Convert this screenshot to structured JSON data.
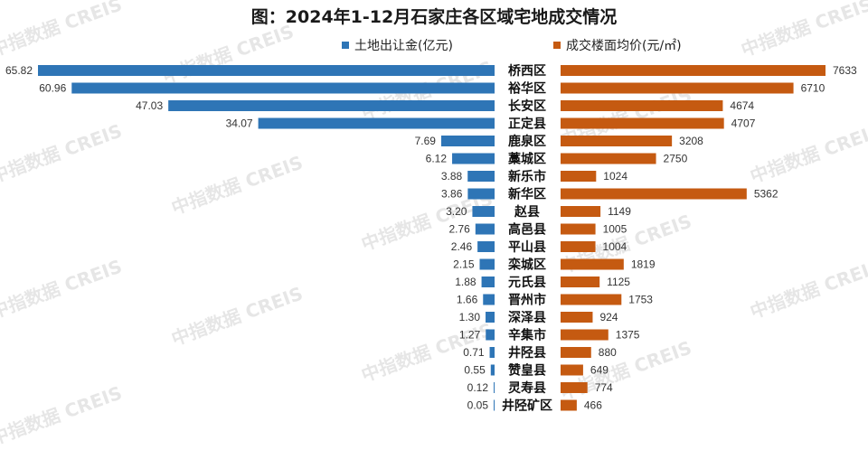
{
  "chart_data": {
    "type": "bar",
    "title": "图：2024年1-12月石家庄各区域宅地成交情况",
    "categories": [
      "桥西区",
      "裕华区",
      "长安区",
      "正定县",
      "鹿泉区",
      "藁城区",
      "新乐市",
      "新华区",
      "赵县",
      "高邑县",
      "平山县",
      "栾城区",
      "元氏县",
      "晋州市",
      "深泽县",
      "辛集市",
      "井陉县",
      "赞皇县",
      "灵寿县",
      "井陉矿区"
    ],
    "series": [
      {
        "name": "土地出让金(亿元)",
        "color": "#2e75b6",
        "values": [
          65.82,
          60.96,
          47.03,
          34.07,
          7.69,
          6.12,
          3.88,
          3.86,
          3.2,
          2.76,
          2.46,
          2.15,
          1.88,
          1.66,
          1.3,
          1.27,
          0.71,
          0.55,
          0.12,
          0.05
        ],
        "labels": [
          "65.82",
          "60.96",
          "47.03",
          "34.07",
          "7.69",
          "6.12",
          "3.88",
          "3.86",
          "3.20",
          "2.76",
          "2.46",
          "2.15",
          "1.88",
          "1.66",
          "1.30",
          "1.27",
          "0.71",
          "0.55",
          "0.12",
          "0.05"
        ]
      },
      {
        "name": "成交楼面均价(元/㎡)",
        "color": "#c55a11",
        "values": [
          7633,
          6710,
          4674,
          4707,
          3208,
          2750,
          1024,
          5362,
          1149,
          1005,
          1004,
          1819,
          1125,
          1753,
          924,
          1375,
          880,
          649,
          774,
          466
        ],
        "labels": [
          "7633",
          "6710",
          "4674",
          "4707",
          "3208",
          "2750",
          "1024",
          "5362",
          "1149",
          "1005",
          "1004",
          "1819",
          "1125",
          "1753",
          "924",
          "1375",
          "880",
          "649",
          "774",
          "466"
        ]
      }
    ],
    "orientation": "horizontal-butterfly",
    "legend": "top-center"
  },
  "watermark": {
    "text": "中指数据 CREIS"
  }
}
